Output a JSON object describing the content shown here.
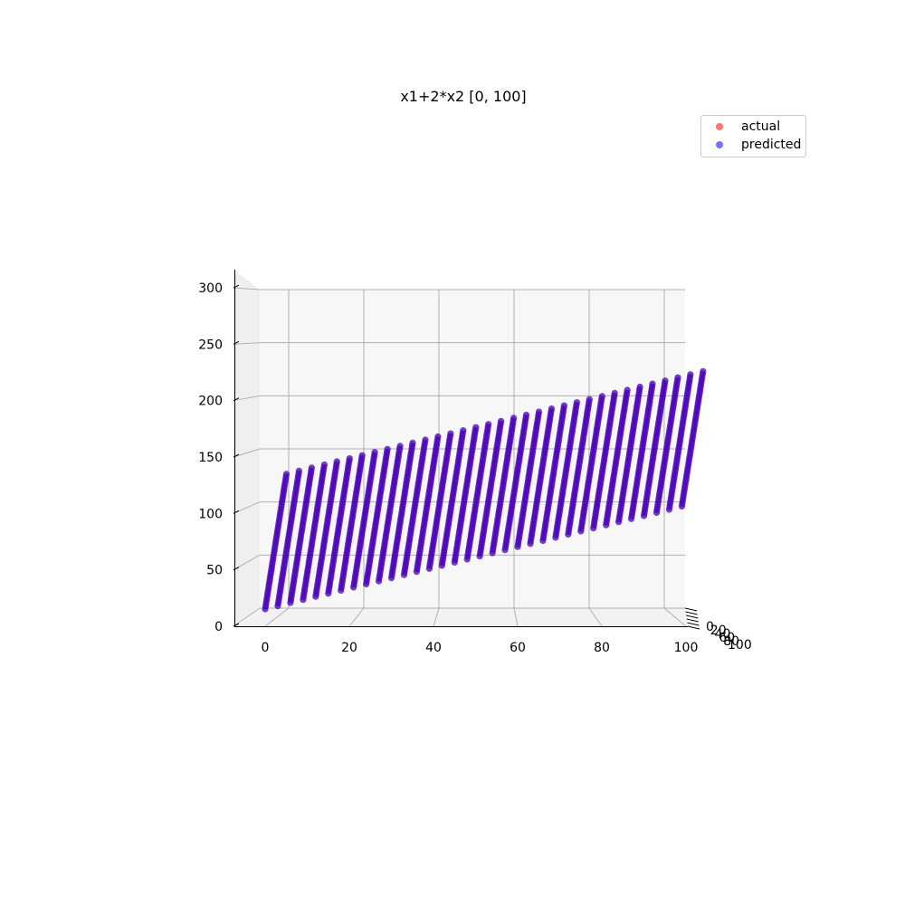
{
  "chart_data": {
    "type": "scatter",
    "projection": "3d",
    "title": "x1+2*x2 [0, 100]",
    "x_ticks": [
      "0",
      "20",
      "40",
      "60",
      "80",
      "100"
    ],
    "y_ticks": [
      "0",
      "20",
      "40",
      "60",
      "80",
      "100"
    ],
    "z_ticks": [
      "0",
      "50",
      "100",
      "150",
      "200",
      "250",
      "300"
    ],
    "xlim": [
      0,
      100
    ],
    "ylim": [
      0,
      100
    ],
    "zlim": [
      0,
      300
    ],
    "grid": true,
    "legend_position": "top-right",
    "x_columns": [
      0,
      3,
      6,
      9,
      12,
      15,
      18,
      21,
      24,
      27,
      30,
      33,
      36,
      39,
      42,
      45,
      48,
      51,
      54,
      57,
      60,
      63,
      66,
      69,
      72,
      75,
      78,
      81,
      84,
      87,
      90,
      93,
      96,
      99
    ],
    "x2_range": [
      0,
      100
    ],
    "series": [
      {
        "name": "actual",
        "color": "#ff0000",
        "formula": "x1+2*x2"
      },
      {
        "name": "predicted",
        "color": "#0000ff",
        "formula": "x1+2*x2"
      }
    ]
  }
}
